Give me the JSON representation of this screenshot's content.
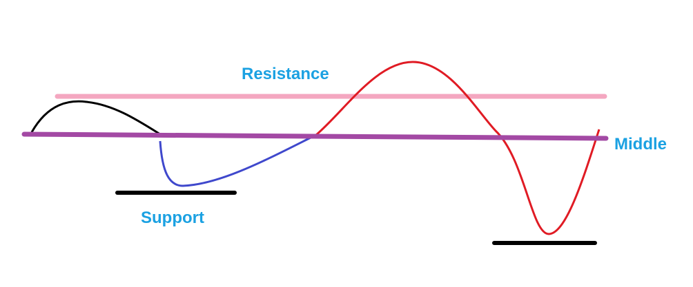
{
  "labels": {
    "resistance": "Resistance",
    "middle": "Middle",
    "support": "Support"
  }
}
